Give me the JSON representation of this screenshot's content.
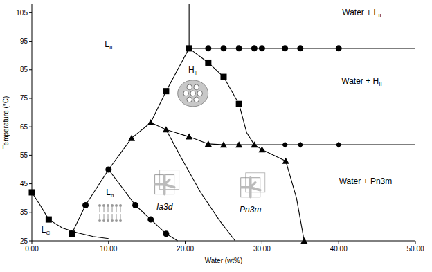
{
  "chart_data": {
    "type": "scatter",
    "x_label": "Water (wt%)",
    "y_label": "Temperature (°C)",
    "xlim": [
      0,
      50
    ],
    "ylim": [
      25,
      108
    ],
    "xticks": [
      {
        "value": 0,
        "label": "0.00"
      },
      {
        "value": 10,
        "label": "10.00"
      },
      {
        "value": 20,
        "label": "20.00"
      },
      {
        "value": 30,
        "label": "30.00"
      },
      {
        "value": 40,
        "label": "40.00"
      },
      {
        "value": 50,
        "label": "50.00"
      }
    ],
    "yticks": [
      25,
      35,
      45,
      55,
      65,
      75,
      85,
      95,
      105
    ],
    "grid": false,
    "series": [
      {
        "type": "line",
        "color": "#000000",
        "line_style": "solid",
        "x": [
          0,
          1.2,
          2.2,
          4,
          6,
          8,
          10
        ],
        "values": [
          42,
          37,
          32.5,
          29.5,
          27.8,
          26.5,
          25.8
        ]
      },
      {
        "type": "line",
        "color": "#000000",
        "line_style": "solid",
        "x": [
          5.2,
          7,
          10,
          13,
          15.5,
          17.5,
          20.5
        ],
        "values": [
          27.5,
          37.5,
          50,
          61,
          66.5,
          77.5,
          92.5
        ]
      },
      {
        "type": "line",
        "color": "#000000",
        "line_style": "solid",
        "x": [
          10,
          13.5,
          15.5,
          17.5,
          19
        ],
        "values": [
          50,
          37.5,
          32.5,
          27.5,
          25
        ]
      },
      {
        "type": "line",
        "color": "#000000",
        "line_style": "solid",
        "x": [
          17.5,
          19.5,
          22,
          24.5,
          26.5
        ],
        "values": [
          64,
          54,
          42,
          32,
          25
        ]
      },
      {
        "type": "line",
        "color": "#000000",
        "line_style": "solid",
        "x": [
          15.5,
          17.5,
          20.5,
          23,
          25,
          27,
          29,
          30,
          33.1,
          34.5,
          35.5
        ],
        "values": [
          66.5,
          64,
          61.5,
          59,
          58.7,
          58.7,
          58.7,
          57,
          53,
          40,
          25
        ]
      },
      {
        "type": "line",
        "color": "#000000",
        "line_style": "solid",
        "x": [
          20.5,
          23,
          25,
          27,
          28,
          29
        ],
        "values": [
          92.5,
          87.5,
          82.5,
          73,
          63,
          58.7
        ]
      },
      {
        "type": "line",
        "color": "#000000",
        "line_style": "solid",
        "x": [
          20.5,
          50
        ],
        "values": [
          92.5,
          92.5
        ]
      },
      {
        "type": "line",
        "color": "#000000",
        "line_style": "solid",
        "x": [
          29,
          50
        ],
        "values": [
          58.7,
          58.7
        ]
      },
      {
        "type": "line",
        "color": "#000000",
        "line_style": "solid",
        "x": [
          20.5,
          20.5
        ],
        "values": [
          92.5,
          108
        ]
      },
      {
        "type": "scatter",
        "marker": "square",
        "color": "#000000",
        "x": [
          0,
          2.2,
          5.2,
          17.5,
          20.5,
          23,
          25,
          27
        ],
        "values": [
          42,
          32.5,
          27.5,
          77.5,
          92.5,
          87.5,
          82.5,
          73
        ]
      },
      {
        "type": "scatter",
        "marker": "circle",
        "color": "#000000",
        "x": [
          7,
          10,
          13.5,
          15.5,
          17.5,
          23,
          25,
          27,
          29,
          30,
          33,
          35,
          40
        ],
        "values": [
          37.5,
          50,
          37.5,
          32.5,
          27.5,
          92.5,
          92.5,
          92.5,
          92.5,
          92.5,
          92.5,
          92.5,
          92.5
        ]
      },
      {
        "type": "scatter",
        "marker": "triangle",
        "color": "#000000",
        "x": [
          13,
          15.5,
          17.5,
          20.5,
          23,
          25,
          27,
          29,
          30,
          33.1,
          35.5
        ],
        "values": [
          61,
          66.5,
          64,
          61.5,
          59,
          58.7,
          58.7,
          58.7,
          57,
          53,
          25
        ]
      },
      {
        "type": "scatter",
        "marker": "diamond",
        "color": "#000000",
        "x": [
          33,
          35,
          40
        ],
        "values": [
          58.7,
          58.7,
          58.7
        ]
      }
    ],
    "annotations": [
      {
        "text": "L",
        "sub": "II",
        "x": 10,
        "y": 93
      },
      {
        "text": "H",
        "sub": "II",
        "x": 21,
        "y": 84
      },
      {
        "text": "L",
        "sub": "α",
        "x": 10.2,
        "y": 41
      },
      {
        "text": "Ia3d",
        "x": 17.3,
        "y": 36
      },
      {
        "text": "Pn3m",
        "x": 28.5,
        "y": 35
      },
      {
        "text": "L",
        "sub": "C",
        "x": 1.8,
        "y": 28
      },
      {
        "text": "Water + L",
        "sub": "II",
        "x": 43,
        "y": 104
      },
      {
        "text": "Water + H",
        "sub": "II",
        "x": 43,
        "y": 80
      },
      {
        "text": "Water + Pn3m",
        "x": 43.5,
        "y": 45
      }
    ]
  }
}
